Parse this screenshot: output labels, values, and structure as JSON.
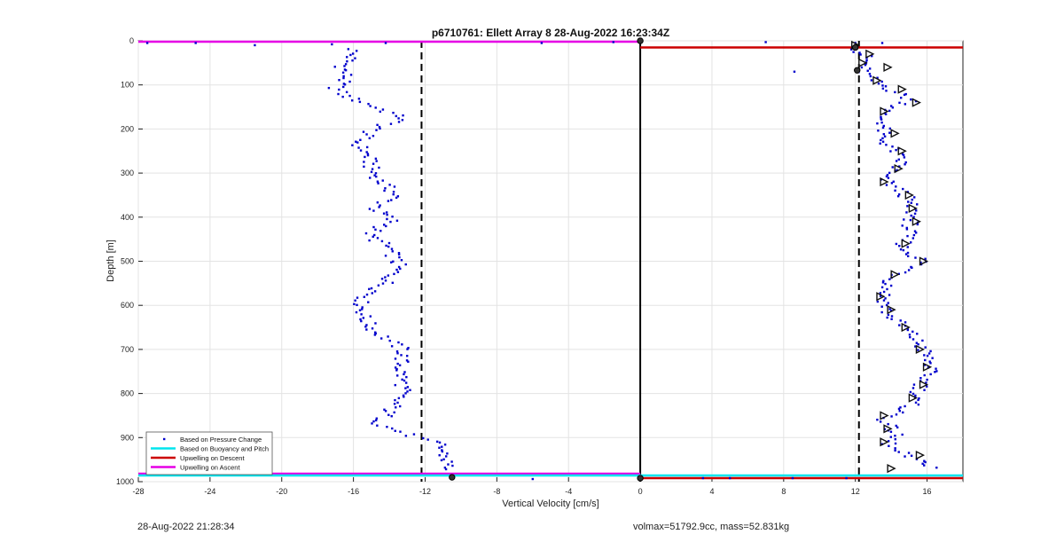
{
  "chart_data": {
    "type": "scatter",
    "title": "p6710761: Ellett Array 8 28-Aug-2022 16:23:34Z",
    "xlabel": "Vertical Velocity [cm/s]",
    "ylabel": "Depth [m]",
    "xlim": [
      -28,
      18
    ],
    "ylim": [
      0,
      1000
    ],
    "y_reversed": true,
    "grid": true,
    "legend_placement": "bottom-left",
    "xticks": [
      -28,
      -24,
      -20,
      -16,
      -12,
      -8,
      -4,
      0,
      4,
      8,
      12,
      16
    ],
    "yticks": [
      0,
      100,
      200,
      300,
      400,
      500,
      600,
      700,
      800,
      900,
      1000
    ],
    "legend": [
      {
        "label": "Based on Pressure Change",
        "color": "#0000cc",
        "style": "dot"
      },
      {
        "label": "Based on Buoyancy and Pitch",
        "color": "#00e5ee",
        "style": "line"
      },
      {
        "label": "Upwelling on Descent",
        "color": "#cc0000",
        "style": "line"
      },
      {
        "label": "Upwelling on Ascent",
        "color": "#e600e6",
        "style": "line"
      }
    ],
    "reference_lines": {
      "dashed_x": [
        -12.2,
        12.2
      ],
      "solid_x": 0
    },
    "upwelling_lines": [
      {
        "series": "Upwelling on Ascent",
        "x_range": [
          -28,
          0
        ],
        "depth": 2
      },
      {
        "series": "Upwelling on Descent",
        "x_range": [
          0,
          18
        ],
        "depth": 15
      },
      {
        "series": "Upwelling on Ascent",
        "x_range": [
          -28,
          0
        ],
        "depth": 982
      },
      {
        "series": "Upwelling on Descent",
        "x_range": [
          0,
          18
        ],
        "depth": 992
      },
      {
        "series": "Based on Buoyancy and Pitch",
        "x_range": [
          -28,
          18
        ],
        "depth": 986
      }
    ],
    "series": [
      {
        "name": "Based on Pressure Change (ascent)",
        "profile": [
          [
            -16.0,
            20
          ],
          [
            -16.2,
            40
          ],
          [
            -16.6,
            60
          ],
          [
            -16.4,
            80
          ],
          [
            -17.0,
            110
          ],
          [
            -16.2,
            130
          ],
          [
            -14.8,
            150
          ],
          [
            -13.2,
            175
          ],
          [
            -14.8,
            200
          ],
          [
            -15.8,
            230
          ],
          [
            -15.2,
            260
          ],
          [
            -15.0,
            290
          ],
          [
            -14.5,
            320
          ],
          [
            -13.6,
            350
          ],
          [
            -14.8,
            380
          ],
          [
            -13.8,
            410
          ],
          [
            -15.2,
            440
          ],
          [
            -14.0,
            470
          ],
          [
            -13.5,
            510
          ],
          [
            -14.2,
            550
          ],
          [
            -15.6,
            590
          ],
          [
            -15.4,
            630
          ],
          [
            -14.8,
            660
          ],
          [
            -13.2,
            700
          ],
          [
            -13.4,
            740
          ],
          [
            -13.2,
            790
          ],
          [
            -13.8,
            830
          ],
          [
            -14.6,
            870
          ],
          [
            -12.8,
            895
          ],
          [
            -11.2,
            915
          ],
          [
            -11.0,
            935
          ],
          [
            -10.8,
            955
          ],
          [
            -10.6,
            975
          ]
        ],
        "outliers": [
          [
            -27.5,
            5
          ],
          [
            -21.5,
            10
          ],
          [
            -24.8,
            5
          ],
          [
            -17.2,
            8
          ],
          [
            -14.2,
            5
          ],
          [
            -5.5,
            5
          ],
          [
            -1.5,
            3
          ],
          [
            -6.0,
            994
          ],
          [
            -10.5,
            990
          ]
        ]
      },
      {
        "name": "Based on Pressure Change (descent)",
        "profile": [
          [
            12.2,
            20
          ],
          [
            12.6,
            40
          ],
          [
            12.4,
            70
          ],
          [
            13.0,
            90
          ],
          [
            14.0,
            110
          ],
          [
            15.2,
            135
          ],
          [
            13.4,
            165
          ],
          [
            13.6,
            190
          ],
          [
            13.4,
            220
          ],
          [
            14.2,
            250
          ],
          [
            14.6,
            280
          ],
          [
            13.4,
            310
          ],
          [
            14.8,
            350
          ],
          [
            15.2,
            390
          ],
          [
            15.0,
            430
          ],
          [
            14.6,
            470
          ],
          [
            15.8,
            500
          ],
          [
            14.0,
            540
          ],
          [
            13.6,
            580
          ],
          [
            13.8,
            620
          ],
          [
            15.0,
            660
          ],
          [
            15.8,
            700
          ],
          [
            16.2,
            740
          ],
          [
            15.6,
            790
          ],
          [
            15.0,
            830
          ],
          [
            13.6,
            860
          ],
          [
            14.2,
            890
          ],
          [
            13.8,
            920
          ],
          [
            15.0,
            945
          ],
          [
            16.6,
            970
          ]
        ],
        "outliers": [
          [
            7.0,
            3
          ],
          [
            8.6,
            70
          ],
          [
            12.0,
            5
          ],
          [
            13.5,
            5
          ],
          [
            3.5,
            992
          ],
          [
            5.0,
            992
          ],
          [
            8.5,
            992
          ],
          [
            11.5,
            992
          ]
        ]
      },
      {
        "name": "Based on Buoyancy and Pitch (triangles)",
        "profile": [
          [
            12.0,
            10
          ],
          [
            12.8,
            30
          ],
          [
            12.4,
            50
          ],
          [
            13.8,
            60
          ],
          [
            13.2,
            90
          ],
          [
            14.6,
            110
          ],
          [
            15.4,
            140
          ],
          [
            13.6,
            160
          ],
          [
            14.2,
            210
          ],
          [
            14.6,
            250
          ],
          [
            14.4,
            290
          ],
          [
            13.6,
            320
          ],
          [
            15.0,
            350
          ],
          [
            15.2,
            380
          ],
          [
            15.4,
            410
          ],
          [
            14.8,
            460
          ],
          [
            15.8,
            500
          ],
          [
            14.2,
            530
          ],
          [
            13.4,
            580
          ],
          [
            14.0,
            610
          ],
          [
            14.8,
            650
          ],
          [
            15.6,
            700
          ],
          [
            16.0,
            740
          ],
          [
            15.8,
            780
          ],
          [
            15.2,
            810
          ],
          [
            13.6,
            850
          ],
          [
            13.8,
            880
          ],
          [
            13.6,
            910
          ],
          [
            15.6,
            940
          ],
          [
            14.0,
            970
          ]
        ]
      }
    ]
  },
  "footer": {
    "timestamp": "28-Aug-2022 21:28:34",
    "vehicle": "volmax=51792.9cc, mass=52.831kg"
  }
}
